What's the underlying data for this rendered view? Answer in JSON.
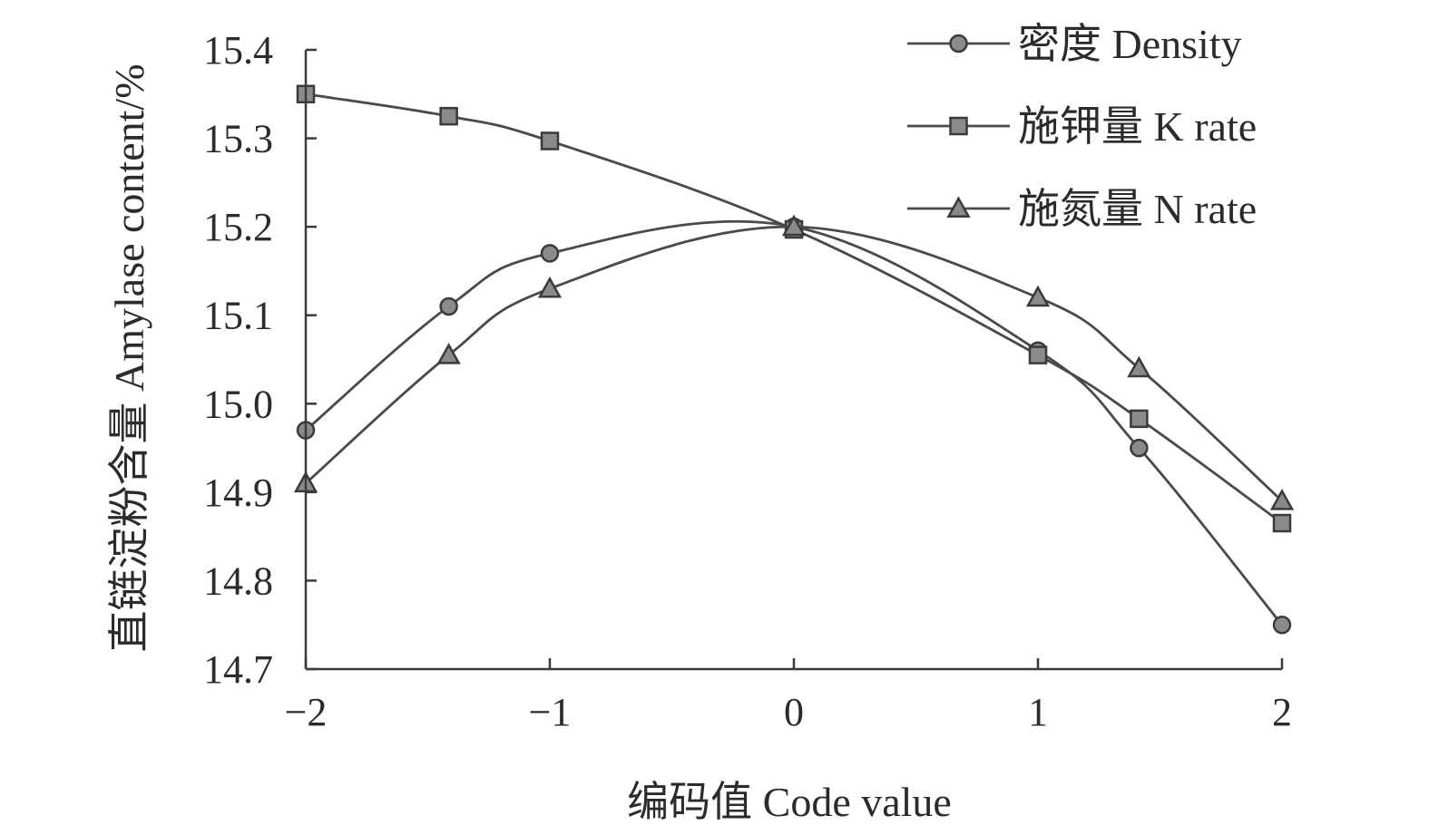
{
  "chart_data": {
    "type": "line",
    "title": "",
    "xlabel": "编码值 Code value",
    "ylabel": "直链淀粉含量 Amylase content/%",
    "xlim": [
      -2,
      2
    ],
    "ylim": [
      14.7,
      15.4
    ],
    "xticks": [
      -2,
      -1,
      0,
      1,
      2
    ],
    "xtick_labels": [
      "−2",
      "−1",
      "0",
      "1",
      "2"
    ],
    "yticks": [
      14.7,
      14.8,
      14.9,
      15.0,
      15.1,
      15.2,
      15.3,
      15.4
    ],
    "ytick_labels": [
      "14.7",
      "14.8",
      "14.9",
      "15.0",
      "15.1",
      "15.2",
      "15.3",
      "15.4"
    ],
    "grid": false,
    "legend_position": "top-right",
    "series": [
      {
        "name": "密度 Density",
        "marker": "circle",
        "x": [
          -2,
          -1.414,
          -1,
          0,
          1,
          1.414,
          2
        ],
        "y": [
          14.97,
          15.11,
          15.17,
          15.2,
          15.06,
          14.95,
          14.75
        ]
      },
      {
        "name": "施钾量  K rate",
        "marker": "square",
        "x": [
          -2,
          -1.414,
          -1,
          0,
          1,
          1.414,
          2
        ],
        "y": [
          15.35,
          15.325,
          15.297,
          15.197,
          15.055,
          14.983,
          14.865
        ]
      },
      {
        "name": "施氮量  N rate",
        "marker": "triangle",
        "x": [
          -2,
          -1.414,
          -1,
          0,
          1,
          1.414,
          2
        ],
        "y": [
          14.91,
          15.055,
          15.13,
          15.2,
          15.12,
          15.04,
          14.89
        ]
      }
    ]
  }
}
